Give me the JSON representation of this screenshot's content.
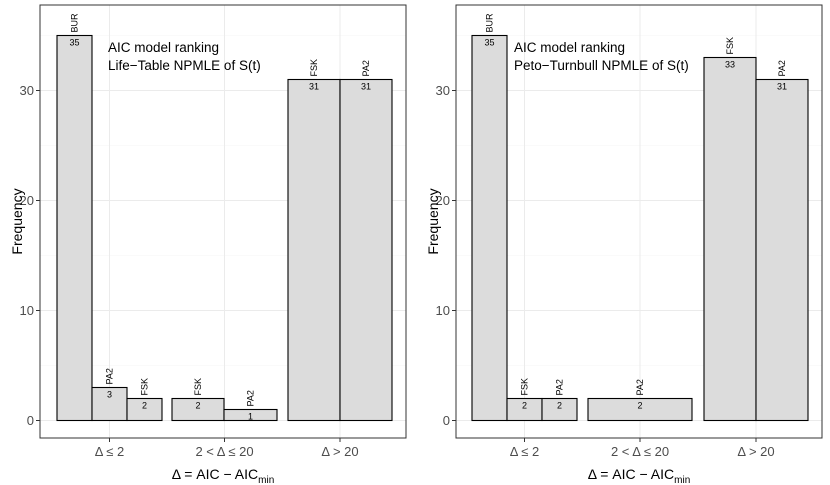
{
  "chart_data": [
    {
      "type": "bar",
      "subtype": "grouped-bar",
      "title": "",
      "annotation_lines": [
        "AIC model ranking",
        "Life−Table NPMLE of S(t)"
      ],
      "xlabel": "Δ = AIC − AIC",
      "xlabel_subscript": "min",
      "ylabel": "Frequency",
      "ylim": [
        0,
        36
      ],
      "yticks": [
        0,
        10,
        20,
        30
      ],
      "categories": [
        "Δ ≤ 2",
        "2 < Δ ≤ 20",
        "Δ > 20"
      ],
      "groups": [
        {
          "category": "Δ ≤ 2",
          "bars": [
            {
              "model": "BUR",
              "value": 35
            },
            {
              "model": "PA2",
              "value": 3
            },
            {
              "model": "FSK",
              "value": 2
            }
          ]
        },
        {
          "category": "2 < Δ ≤ 20",
          "bars": [
            {
              "model": "FSK",
              "value": 2
            },
            {
              "model": "PA2",
              "value": 1
            }
          ]
        },
        {
          "category": "Δ > 20",
          "bars": [
            {
              "model": "FSK",
              "value": 31
            },
            {
              "model": "PA2",
              "value": 31
            }
          ]
        }
      ]
    },
    {
      "type": "bar",
      "subtype": "grouped-bar",
      "title": "",
      "annotation_lines": [
        "AIC model ranking",
        "Peto−Turnbull NPMLE of S(t)"
      ],
      "xlabel": "Δ = AIC − AIC",
      "xlabel_subscript": "min",
      "ylabel": "Frequency",
      "ylim": [
        0,
        36
      ],
      "yticks": [
        0,
        10,
        20,
        30
      ],
      "categories": [
        "Δ ≤ 2",
        "2 < Δ ≤ 20",
        "Δ > 20"
      ],
      "groups": [
        {
          "category": "Δ ≤ 2",
          "bars": [
            {
              "model": "BUR",
              "value": 35
            },
            {
              "model": "FSK",
              "value": 2
            },
            {
              "model": "PA2",
              "value": 2
            }
          ]
        },
        {
          "category": "2 < Δ ≤ 20",
          "bars": [
            {
              "model": "PA2",
              "value": 2
            }
          ]
        },
        {
          "category": "Δ > 20",
          "bars": [
            {
              "model": "FSK",
              "value": 33
            },
            {
              "model": "PA2",
              "value": 31
            }
          ]
        }
      ]
    }
  ]
}
